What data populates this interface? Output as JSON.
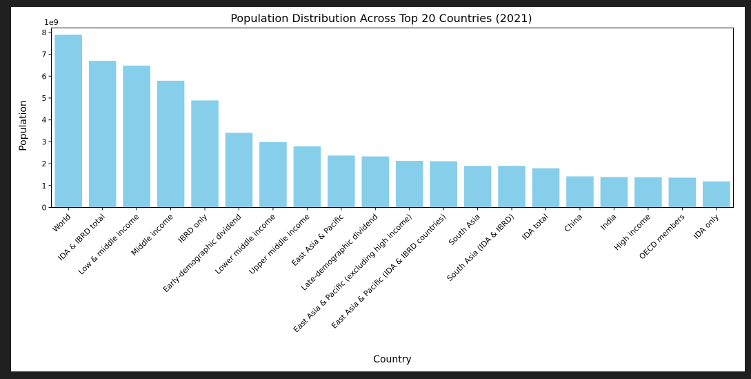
{
  "chart_data": {
    "type": "bar",
    "title": "Population Distribution Across Top 20 Countries (2021)",
    "xlabel": "Country",
    "ylabel": "Population",
    "y_offset_label": "1e9",
    "ylim": [
      0,
      8.2
    ],
    "yticks": [
      0,
      1,
      2,
      3,
      4,
      5,
      6,
      7,
      8
    ],
    "bar_color": "#87ceeb",
    "grid": false,
    "categories": [
      "World",
      "IDA & IBRD total",
      "Low & middle income",
      "Middle income",
      "IBRD only",
      "Early-demographic dividend",
      "Lower middle income",
      "Upper middle income",
      "East Asia & Pacific",
      "Late-demographic dividend",
      "East Asia & Pacific (excluding high income)",
      "East Asia & Pacific (IDA & IBRD countries)",
      "South Asia",
      "South Asia (IDA & IBRD)",
      "IDA total",
      "China",
      "India",
      "High income",
      "OECD members",
      "IDA only"
    ],
    "values": [
      7.89,
      6.7,
      6.48,
      5.79,
      4.89,
      3.41,
      2.99,
      2.79,
      2.37,
      2.33,
      2.13,
      2.11,
      1.9,
      1.9,
      1.79,
      1.42,
      1.39,
      1.38,
      1.36,
      1.19
    ]
  }
}
